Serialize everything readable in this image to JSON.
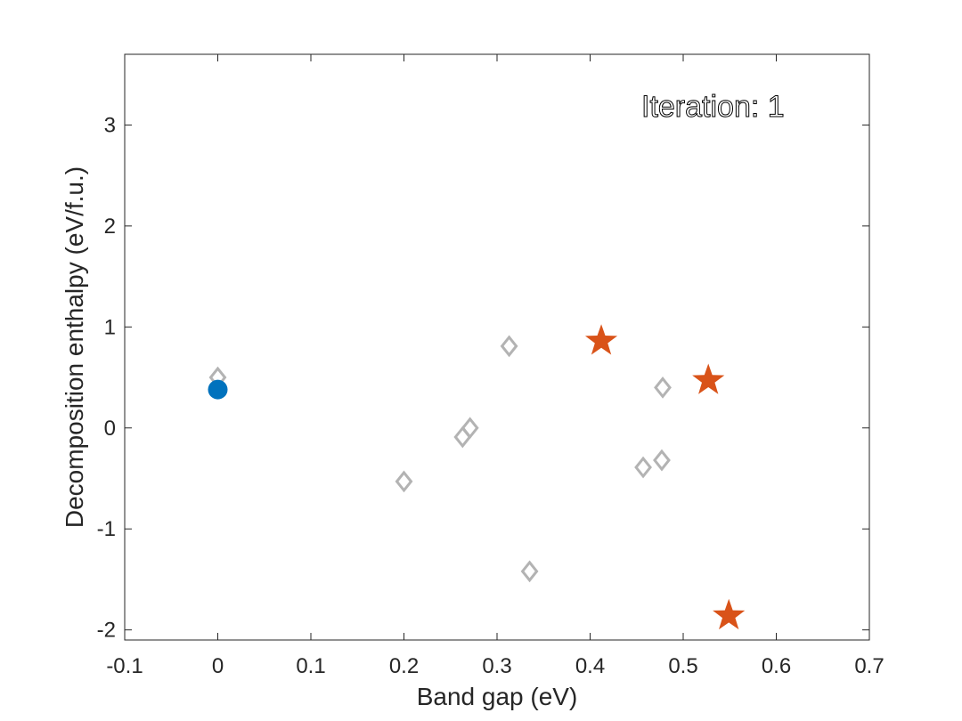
{
  "chart_data": {
    "type": "scatter",
    "xlabel": "Band gap (eV)",
    "ylabel": "Decomposition enthalpy (eV/f.u.)",
    "annotation": "Iteration: 1",
    "xlim": [
      -0.1,
      0.7
    ],
    "ylim": [
      -2.1,
      3.7
    ],
    "xticks": [
      -0.1,
      0,
      0.1,
      0.2,
      0.3,
      0.4,
      0.5,
      0.6,
      0.7
    ],
    "xtick_labels": [
      "-0.1",
      "0",
      "0.1",
      "0.2",
      "0.3",
      "0.4",
      "0.5",
      "0.6",
      "0.7"
    ],
    "yticks": [
      -2,
      -1,
      0,
      1,
      2,
      3
    ],
    "ytick_labels": [
      "-2",
      "-1",
      "0",
      "1",
      "2",
      "3"
    ],
    "grid": false,
    "series": [
      {
        "marker": "diamond",
        "color": "#b3b3b3",
        "points": [
          [
            0.0,
            0.5
          ],
          [
            0.2,
            -0.53
          ],
          [
            0.263,
            -0.09
          ],
          [
            0.271,
            0.0
          ],
          [
            0.313,
            0.81
          ],
          [
            0.335,
            -1.42
          ],
          [
            0.457,
            -0.39
          ],
          [
            0.477,
            -0.32
          ],
          [
            0.478,
            0.4
          ]
        ]
      },
      {
        "marker": "star",
        "color": "#d95319",
        "points": [
          [
            0.412,
            0.86
          ],
          [
            0.527,
            0.47
          ],
          [
            0.549,
            -1.86
          ]
        ]
      },
      {
        "marker": "circle",
        "color": "#0072bd",
        "points": [
          [
            0.0,
            0.38
          ]
        ]
      }
    ]
  }
}
